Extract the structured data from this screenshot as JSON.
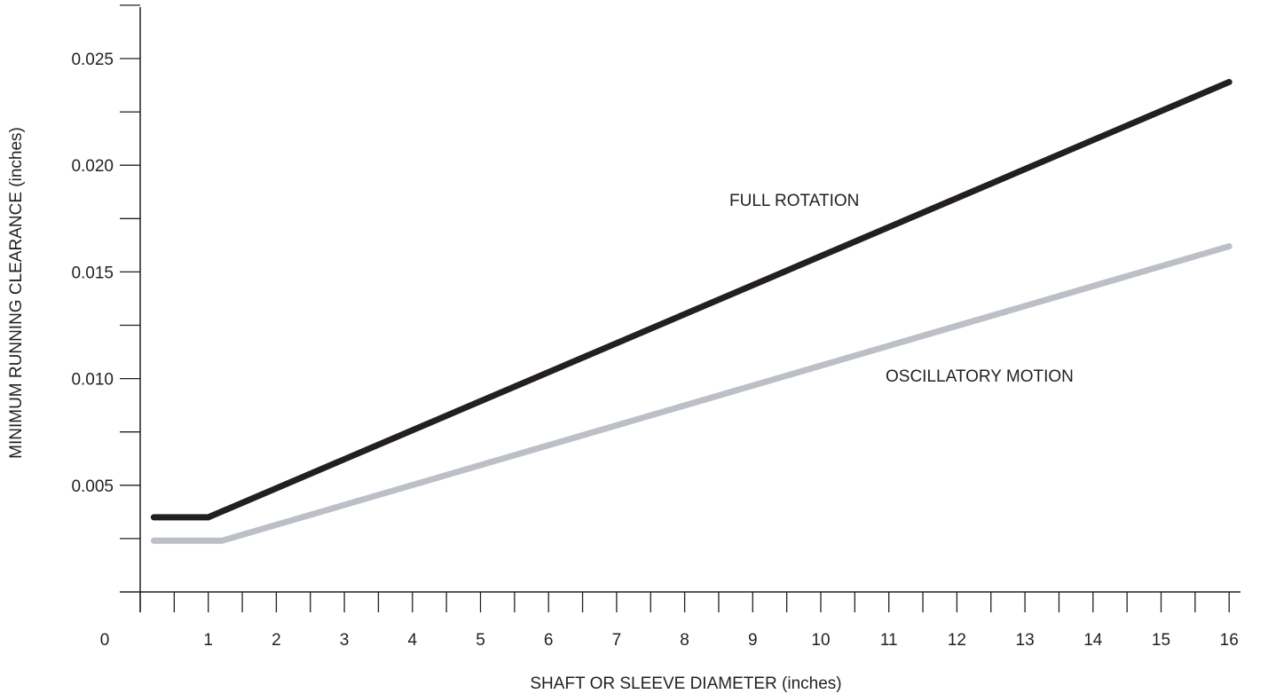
{
  "chart_data": {
    "type": "line",
    "title": "",
    "xlabel": "SHAFT OR SLEEVE DIAMETER (inches)",
    "ylabel": "MINIMUM RUNNING CLEARANCE (inches)",
    "xlim": [
      0,
      16
    ],
    "ylim": [
      0,
      0.0275
    ],
    "x_ticks": [
      "0",
      "1",
      "2",
      "3",
      "4",
      "5",
      "6",
      "7",
      "8",
      "9",
      "10",
      "11",
      "12",
      "13",
      "14",
      "15",
      "16"
    ],
    "y_ticks": [
      "0.005",
      "0.010",
      "0.015",
      "0.020",
      "0.025"
    ],
    "grid": false,
    "legend": "none",
    "series": [
      {
        "name": "FULL ROTATION",
        "color": "#231f20",
        "x": [
          0.2,
          1.0,
          16.0
        ],
        "y": [
          0.0035,
          0.0035,
          0.0239
        ]
      },
      {
        "name": "OSCILLATORY MOTION",
        "color": "#bcc0c6",
        "x": [
          0.2,
          1.2,
          16.0
        ],
        "y": [
          0.0024,
          0.0024,
          0.0162
        ]
      }
    ]
  }
}
